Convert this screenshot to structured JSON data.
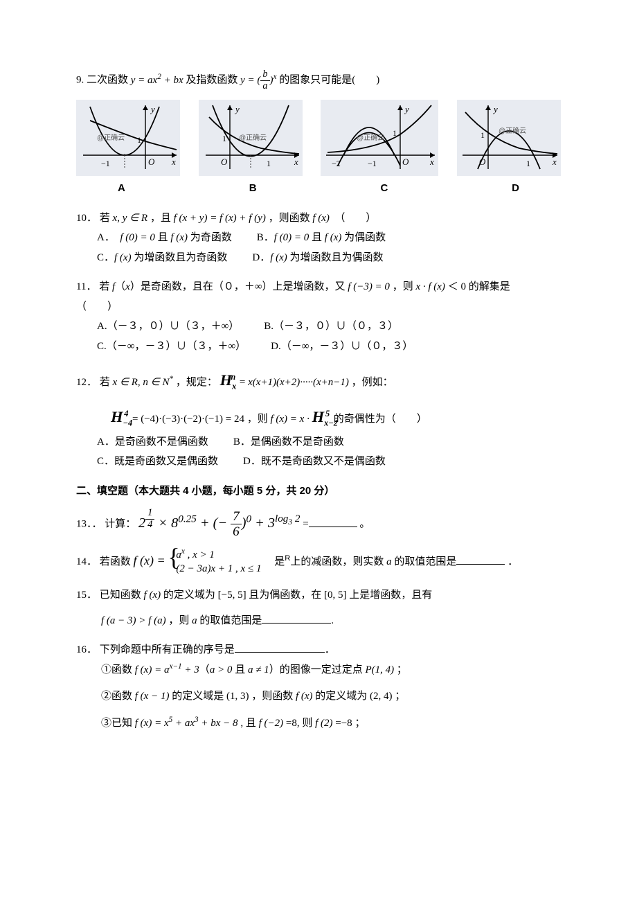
{
  "q9": {
    "num": "9.",
    "text_before": "二次函数 ",
    "eq1_html": "y = ax<sup>2</sup> + bx",
    "text_mid1": " 及指数函数 ",
    "eq2_pre": "y = (",
    "eq2_frac_num": "b",
    "eq2_frac_den": "a",
    "eq2_post": ")<sup>x</sup>",
    "text_after": " 的图象只可能是(　　)",
    "labels": {
      "A": "A",
      "B": "B",
      "C": "C",
      "D": "D"
    },
    "graphs": {
      "watermark": "@正确云",
      "bg": "#e8ebf1",
      "axis": "#000000",
      "curve": "#000000",
      "vertex_dash": "#333333",
      "tick_font": 12
    }
  },
  "q10": {
    "num": "10．",
    "line1": "若 <span class=\"inline-math\">x, y ∈ R</span> ，且 <span class=\"inline-math\">f (x + y) = f (x) + f (y)</span> ，则函数 <span class=\"inline-math\">f (x)</span>　（　　）",
    "A": "A．　<span class=\"inline-math\">f (0) = 0</span> 且 <span class=\"inline-math\">f (x)</span> 为奇函数",
    "B": "B．<span class=\"inline-math\">f (0) = 0</span> 且 <span class=\"inline-math\">f (x)</span> 为偶函数",
    "C": "C．<span class=\"inline-math\">f (x)</span> 为增函数且为奇函数",
    "D": "D．<span class=\"inline-math\">f (x)</span> 为增函数且为偶函数"
  },
  "q11": {
    "num": "11．",
    "line1": "若 <span class=\"inline-math\">f</span>（<span class=\"inline-math\">x</span>）是奇函数，且在（０，＋∞）上是增函数，又 <span class=\"inline-math\">f (−3) = 0</span> ，则 <span class=\"inline-math\">x · f (x)</span> ＜ 0 的解集是",
    "line2": "（　　）",
    "A": "A.（－３，０）∪（３，＋∞）",
    "B": "B.（－３，０）∪（０，３）",
    "C": "C.（－∞，－３）∪（３，＋∞）",
    "D": "D.（－∞，－３）∪（０，３）"
  },
  "q12": {
    "num": "12．",
    "line1_pre": "若 <span class=\"inline-math\">x ∈ R, n ∈ N<sup>*</sup></span> ，规定：",
    "H1_base": "H",
    "H1_sup": "n",
    "H1_sub": "x",
    "line1_post": "= <span class=\"inline-math\">x(x+1)(x+2)·····(x+n−1)</span> ，例如：",
    "line2_H_base": "H",
    "line2_H_sup": "4",
    "line2_H_sub": "−4",
    "line2_eq": "= (−4)·(−3)·(−2)·(−1) = 24 ，则 <span class=\"inline-math\">f (x) = x ·</span>",
    "line2_H2_base": "H",
    "line2_H2_sup": "5",
    "line2_H2_sub": "x−2",
    "line2_tail": " 的奇偶性为（　　）",
    "A": "A．是奇函数不是偶函数",
    "B": "B．是偶函数不是奇函数",
    "C": "C．既是奇函数又是偶函数",
    "D": "D．既不是奇函数又不是偶函数"
  },
  "section2": "二、填空题（本大题共 4 小题，每小题 5 分，共 20 分）",
  "q13": {
    "num": "13．．",
    "label": "计算：",
    "expr_html": "2<sup><span class=\"frac\"><span class=\"num\">1</span><span class=\"den\">4</span></span></sup> × 8<sup>0.25</sup> + (− <span class=\"frac\"><span class=\"num\">7</span><span class=\"den\">6</span></span>)<sup>0</sup> + 3<sup>log<sub>3</sub> 2</sup>",
    "tail": "=",
    "period": "。"
  },
  "q14": {
    "num": "14．",
    "pre": "若函数 ",
    "fx": "f (x) =",
    "case1": "a<sup>x</sup> , x &gt; 1",
    "case2": "(2 − 3a)x + 1 , x ≤ 1",
    "mid": "　是<sup style=\"font-family:Arial;font-style:normal;\">R</sup>上的减函数，则实数 <span class=\"inline-math\">a</span> 的取值范围是",
    "period": "．"
  },
  "q15": {
    "num": "15．",
    "line1": "已知函数 <span class=\"inline-math\">f (x)</span> 的定义域为 [−5, 5] 且为偶函数，在 [0, 5] 上是增函数，且有",
    "line2_pre": "<span class=\"inline-math\">f (a − 3) &gt; f (a)</span> ，则 <span class=\"inline-math\">a</span> 的取值范围是",
    "line2_post": "."
  },
  "q16": {
    "num": "16．",
    "head": "下列命题中所有正确的序号是",
    "period": "．",
    "item1": "①函数 <span class=\"inline-math\">f (x) = a<sup>x−1</sup> + 3</span>（<span class=\"inline-math\">a &gt; 0</span> 且 <span class=\"inline-math\">a ≠ 1</span>）的图像一定过定点 <span class=\"inline-math\">P(1, 4)</span> ；",
    "item2": "②函数 <span class=\"inline-math\">f (x − 1)</span> 的定义域是 (1, 3) ，则函数 <span class=\"inline-math\">f (x)</span> 的定义域为 (2, 4) ；",
    "item3": "③已知 <span class=\"inline-math\">f (x) = x<sup>5</sup> + ax<sup>3</sup> + bx − 8</span> , 且 <span class=\"inline-math\">f (−2)</span> =8, 则 <span class=\"inline-math\">f (2)</span> =−8 ；"
  }
}
